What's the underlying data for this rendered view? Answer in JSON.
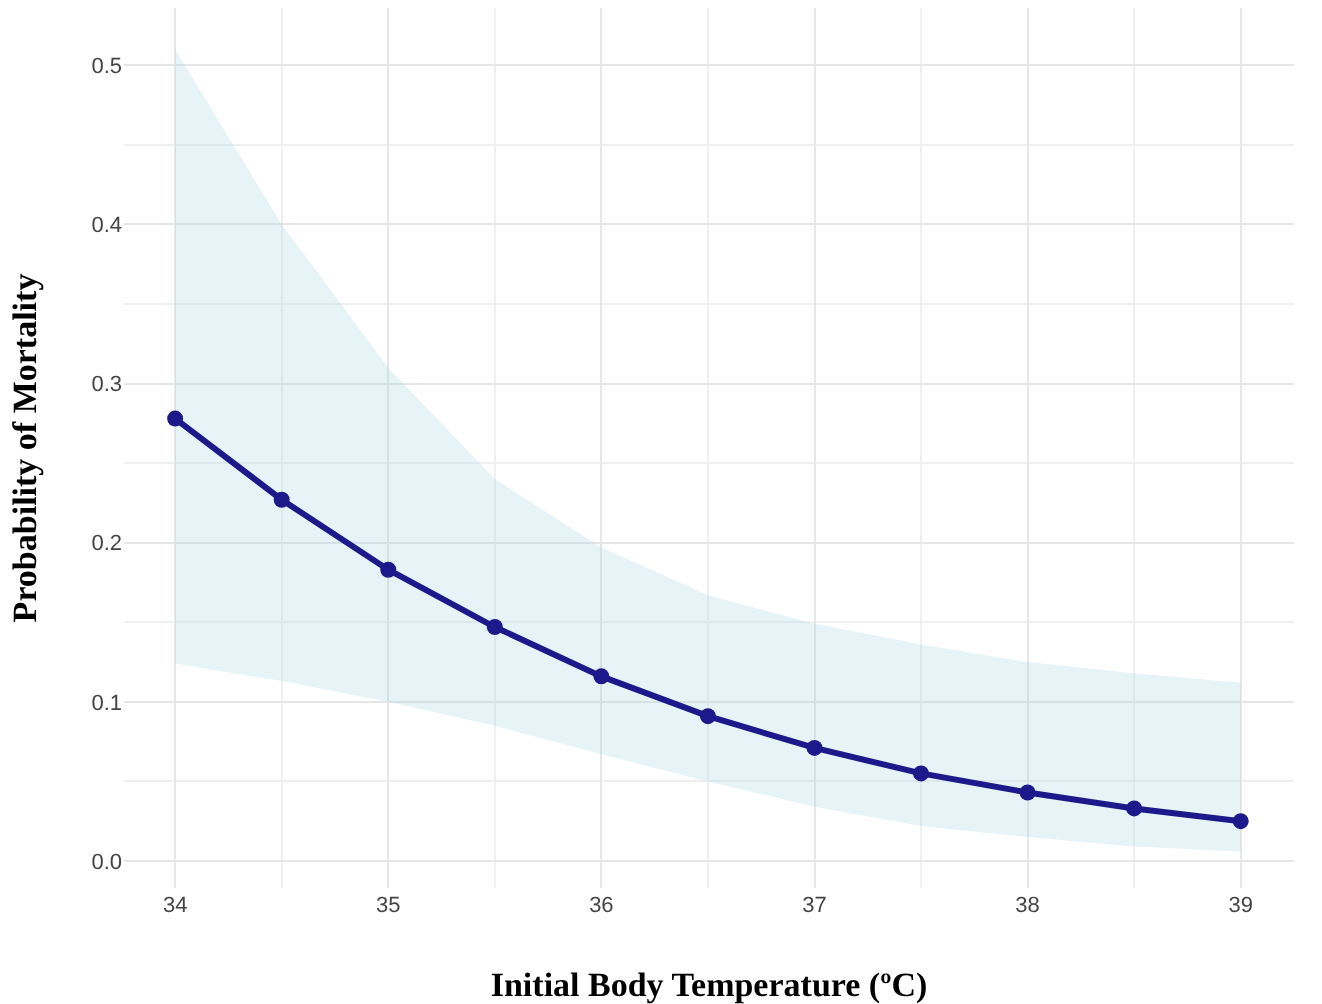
{
  "chart_data": {
    "type": "line",
    "xlabel": "Initial Body Temperature (ºC)",
    "ylabel": "Probability of Mortality",
    "x": [
      34,
      34.5,
      35,
      35.5,
      36,
      36.5,
      37,
      37.5,
      38,
      38.5,
      39
    ],
    "series": [
      {
        "color": "#1c1a8a",
        "values": [
          0.278,
          0.227,
          0.183,
          0.147,
          0.116,
          0.091,
          0.071,
          0.055,
          0.043,
          0.033,
          0.025
        ],
        "lower": [
          0.124,
          0.113,
          0.1,
          0.085,
          0.067,
          0.05,
          0.034,
          0.022,
          0.015,
          0.009,
          0.006
        ],
        "upper": [
          0.51,
          0.4,
          0.31,
          0.24,
          0.197,
          0.167,
          0.149,
          0.136,
          0.125,
          0.118,
          0.112
        ]
      }
    ],
    "xlim": [
      33.76,
      39.25
    ],
    "ylim": [
      -0.017,
      0.536
    ],
    "xticks": [
      34,
      35,
      36,
      37,
      38,
      39
    ],
    "yticks": [
      {
        "value": 0,
        "label": "0.0"
      },
      0.1,
      0.2,
      0.3,
      0.4,
      0.5
    ],
    "grid": true,
    "marker": "circle",
    "line_style": "solid"
  }
}
